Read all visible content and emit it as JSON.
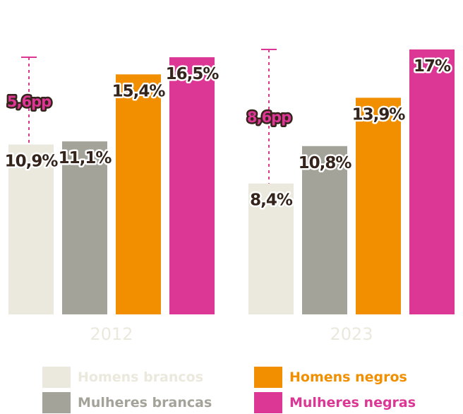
{
  "chart_data": {
    "type": "bar",
    "groups": [
      "2012",
      "2023"
    ],
    "series": [
      {
        "name": "Homens brancos",
        "color": "#ebe9dd",
        "values": [
          10.9,
          8.4
        ],
        "labels": [
          "10,9%",
          "8,4%"
        ]
      },
      {
        "name": "Mulheres brancas",
        "color": "#a4a39a",
        "values": [
          11.1,
          10.8
        ],
        "labels": [
          "11,1%",
          "10,8%"
        ]
      },
      {
        "name": "Homens negros",
        "color": "#f18f00",
        "values": [
          15.4,
          13.9
        ],
        "labels": [
          "15,4%",
          "13,9%"
        ]
      },
      {
        "name": "Mulheres negras",
        "color": "#dc3794",
        "values": [
          16.5,
          17.0
        ],
        "labels": [
          "16,5%",
          "17%"
        ]
      }
    ],
    "gaps": [
      {
        "group": "2012",
        "from": 10.9,
        "to": 16.5,
        "label": "5,6pp"
      },
      {
        "group": "2023",
        "from": 8.4,
        "to": 17.0,
        "label": "8,6pp"
      }
    ],
    "ylim": [
      0,
      17
    ],
    "label_color": "#34241b",
    "label_outline_color": "#ffffff",
    "gap_color": "#dc3794",
    "group_label_color": "#ebe9dd"
  },
  "legend": {
    "items": [
      {
        "label": "Homens brancos",
        "color": "#ebe9dd",
        "text_color": "#ebe9dd"
      },
      {
        "label": "Mulheres brancas",
        "color": "#a4a39a",
        "text_color": "#a4a39a"
      },
      {
        "label": "Homens negros",
        "color": "#f18f00",
        "text_color": "#f18f00"
      },
      {
        "label": "Mulheres negras",
        "color": "#dc3794",
        "text_color": "#dc3794"
      }
    ]
  }
}
